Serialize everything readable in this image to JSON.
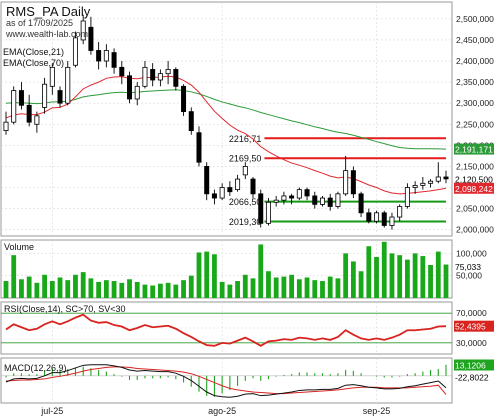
{
  "colors": {
    "up": "#ffffff",
    "down": "#000000",
    "ema21": "#e0282e",
    "ema70": "#2e9b3a",
    "volume": "#19a819",
    "rsi": "#d8231f",
    "macd": "#111111",
    "signal": "#d8231f",
    "hist": "#1ea41e",
    "level_red": "#e51b1b",
    "level_green": "#149a14"
  },
  "header": {
    "title": "RMS_PA Daily",
    "date_line": "as of 17/09/2025",
    "source": "www.wealth-lab.com",
    "ema21_label": "EMA(Close,21)",
    "ema70_label": "EMA(Close,70)"
  },
  "chart_data": [
    {
      "type": "candlestick",
      "panel": "price",
      "ylim": [
        1985000,
        2540000
      ],
      "y_ticks": [
        2000000,
        2050000,
        2100000,
        2150000,
        2200000,
        2250000,
        2300000,
        2350000,
        2400000,
        2450000,
        2500000
      ],
      "y_tick_labels": [
        "2,000,000",
        "2,050,000",
        "2,100,000",
        "2,150,000",
        "2,200,000",
        "2,250,000",
        "2,300,000",
        "2,350,000",
        "2,400,000",
        "2,450,000",
        "2,500,000"
      ],
      "x_labels": [
        "jul-25",
        "ago-25",
        "sep-25"
      ],
      "x_label_index": [
        6,
        28,
        48
      ],
      "ohlc": [
        [
          2235000,
          2280000,
          2225000,
          2255000
        ],
        [
          2255000,
          2340000,
          2250000,
          2330000
        ],
        [
          2330000,
          2350000,
          2285000,
          2295000
        ],
        [
          2295000,
          2320000,
          2245000,
          2255000
        ],
        [
          2250000,
          2280000,
          2230000,
          2270000
        ],
        [
          2290000,
          2360000,
          2275000,
          2345000
        ],
        [
          2340000,
          2395000,
          2320000,
          2385000
        ],
        [
          2330000,
          2340000,
          2290000,
          2300000
        ],
        [
          2300000,
          2400000,
          2295000,
          2385000
        ],
        [
          2390000,
          2470000,
          2385000,
          2455000
        ],
        [
          2450000,
          2510000,
          2440000,
          2495000
        ],
        [
          2480000,
          2505000,
          2415000,
          2425000
        ],
        [
          2425000,
          2445000,
          2380000,
          2400000
        ],
        [
          2400000,
          2440000,
          2385000,
          2425000
        ],
        [
          2420000,
          2430000,
          2370000,
          2385000
        ],
        [
          2385000,
          2400000,
          2345000,
          2365000
        ],
        [
          2365000,
          2375000,
          2300000,
          2310000
        ],
        [
          2310000,
          2350000,
          2295000,
          2340000
        ],
        [
          2340000,
          2400000,
          2335000,
          2385000
        ],
        [
          2380000,
          2395000,
          2340000,
          2355000
        ],
        [
          2355000,
          2380000,
          2340000,
          2370000
        ],
        [
          2370000,
          2400000,
          2345000,
          2380000
        ],
        [
          2380000,
          2385000,
          2330000,
          2340000
        ],
        [
          2340000,
          2345000,
          2270000,
          2280000
        ],
        [
          2280000,
          2290000,
          2225000,
          2235000
        ],
        [
          2230000,
          2245000,
          2150000,
          2160000
        ],
        [
          2150000,
          2160000,
          2070000,
          2085000
        ],
        [
          2085000,
          2095000,
          2060000,
          2075000
        ],
        [
          2075000,
          2110000,
          2070000,
          2100000
        ],
        [
          2100000,
          2115000,
          2080000,
          2090000
        ],
        [
          2095000,
          2130000,
          2090000,
          2120000
        ],
        [
          2130000,
          2160000,
          2120000,
          2150000
        ],
        [
          2120000,
          2125000,
          2075000,
          2085000
        ],
        [
          2085000,
          2095000,
          2005000,
          2015000
        ],
        [
          2015000,
          2075000,
          2010000,
          2065000
        ],
        [
          2065000,
          2080000,
          2055000,
          2070000
        ],
        [
          2070000,
          2090000,
          2060000,
          2080000
        ],
        [
          2080000,
          2085000,
          2060000,
          2075000
        ],
        [
          2075000,
          2100000,
          2070000,
          2095000
        ],
        [
          2095000,
          2100000,
          2070000,
          2080000
        ],
        [
          2080000,
          2090000,
          2050000,
          2060000
        ],
        [
          2060000,
          2080000,
          2055000,
          2075000
        ],
        [
          2075000,
          2085000,
          2045000,
          2055000
        ],
        [
          2055000,
          2090000,
          2050000,
          2085000
        ],
        [
          2085000,
          2175000,
          2080000,
          2140000
        ],
        [
          2140000,
          2150000,
          2075000,
          2085000
        ],
        [
          2085000,
          2090000,
          2030000,
          2040000
        ],
        [
          2040000,
          2050000,
          2015000,
          2020000
        ],
        [
          2020000,
          2045000,
          2015000,
          2040000
        ],
        [
          2040000,
          2045000,
          2005000,
          2010000
        ],
        [
          2010000,
          2040000,
          2000000,
          2030000
        ],
        [
          2030000,
          2060000,
          2020000,
          2055000
        ],
        [
          2055000,
          2110000,
          2050000,
          2100000
        ],
        [
          2100000,
          2115000,
          2085000,
          2105000
        ],
        [
          2105000,
          2125000,
          2095000,
          2110000
        ],
        [
          2110000,
          2120000,
          2100000,
          2115000
        ],
        [
          2115000,
          2160000,
          2110000,
          2125000
        ],
        [
          2125000,
          2140000,
          2110000,
          2120500
        ]
      ],
      "ema21": [
        2265000,
        2272000,
        2275000,
        2273000,
        2273000,
        2279000,
        2289000,
        2290000,
        2298000,
        2315000,
        2334000,
        2343000,
        2350000,
        2359000,
        2362000,
        2363000,
        2359000,
        2358000,
        2361000,
        2361000,
        2362000,
        2364000,
        2362000,
        2354000,
        2343000,
        2326000,
        2303000,
        2281000,
        2264000,
        2248000,
        2236000,
        2228000,
        2215000,
        2197000,
        2185000,
        2175000,
        2166000,
        2158000,
        2153000,
        2147000,
        2140000,
        2134000,
        2127000,
        2123000,
        2125000,
        2121000,
        2114000,
        2106000,
        2100000,
        2092000,
        2087000,
        2085000,
        2086000,
        2088000,
        2090000,
        2092000,
        2095000,
        2098242
      ],
      "ema70": [
        2300000,
        2301000,
        2301000,
        2300000,
        2299000,
        2300000,
        2303000,
        2303000,
        2305000,
        2309000,
        2315000,
        2318000,
        2320000,
        2323000,
        2325000,
        2326000,
        2325000,
        2326000,
        2328000,
        2329000,
        2330000,
        2331000,
        2332000,
        2330000,
        2327000,
        2322000,
        2316000,
        2309000,
        2303000,
        2298000,
        2293000,
        2289000,
        2284000,
        2278000,
        2273000,
        2268000,
        2263000,
        2258000,
        2254000,
        2249000,
        2244000,
        2240000,
        2235000,
        2231000,
        2228000,
        2224000,
        2219000,
        2214000,
        2209000,
        2204000,
        2199000,
        2195000,
        2193000,
        2192000,
        2191900,
        2191800,
        2191500,
        2191171
      ],
      "last_close_label": "2,120,500",
      "ema21_last_label": "2,098,242",
      "ema70_last_label": "2,191,171",
      "levels": [
        {
          "value": 2216710,
          "label": "2216,71",
          "color": "red",
          "from_index": 34
        },
        {
          "value": 2169500,
          "label": "2169,50",
          "color": "red",
          "from_index": 34
        },
        {
          "value": 2066500,
          "label": "2066,50",
          "color": "green",
          "from_index": 34
        },
        {
          "value": 2019300,
          "label": "2019,30",
          "color": "green",
          "from_index": 34
        }
      ]
    },
    {
      "type": "bar",
      "panel": "volume",
      "title": "Volume",
      "ylim": [
        0,
        130000
      ],
      "y_ticks": [
        50000,
        100000
      ],
      "y_tick_labels": [
        "50,000",
        "100,000"
      ],
      "last_label": "75,033",
      "values": [
        38000,
        96000,
        42000,
        48000,
        34000,
        52000,
        38000,
        46000,
        40000,
        52000,
        58000,
        44000,
        36000,
        40000,
        38000,
        34000,
        42000,
        36000,
        30000,
        28000,
        32000,
        34000,
        30000,
        40000,
        50000,
        102000,
        104000,
        98000,
        36000,
        30000,
        38000,
        52000,
        44000,
        120000,
        60000,
        46000,
        48000,
        52000,
        42000,
        46000,
        40000,
        38000,
        48000,
        44000,
        100000,
        82000,
        60000,
        116000,
        92000,
        126000,
        100000,
        96000,
        86000,
        100000,
        94000,
        74000,
        104000,
        75033
      ]
    },
    {
      "type": "line",
      "panel": "rsi",
      "title": "RSI(Close,14), SC>70, SV<30",
      "ylim": [
        15,
        85
      ],
      "y_ticks": [
        30,
        50,
        70
      ],
      "y_tick_labels": [
        "30,0000",
        "50,0000",
        "70,0000"
      ],
      "last_label": "52,4395",
      "values": [
        48,
        55,
        51,
        47,
        49,
        55,
        59,
        55,
        59,
        64,
        68,
        60,
        57,
        58,
        54,
        52,
        47,
        50,
        54,
        51,
        52,
        53,
        49,
        43,
        38,
        32,
        27,
        26,
        30,
        29,
        33,
        37,
        32,
        26,
        32,
        33,
        35,
        34,
        37,
        36,
        34,
        36,
        34,
        38,
        47,
        41,
        36,
        34,
        36,
        34,
        37,
        41,
        47,
        47,
        48,
        49,
        52,
        52.4395
      ]
    },
    {
      "type": "line",
      "panel": "macd",
      "title": "MACD(12,26,9)",
      "ylim": [
        -52000,
        34000
      ],
      "y_ticks": [
        0
      ],
      "y_tick_labels": [
        "0,000"
      ],
      "macd_last_label": "-22,8022",
      "hist_last_label": "13,1206",
      "macd": [
        -12000,
        -6000,
        -5000,
        -6000,
        -5000,
        0,
        6000,
        6000,
        10000,
        15000,
        20000,
        21000,
        21000,
        21000,
        19000,
        16000,
        11000,
        9000,
        10000,
        9000,
        8000,
        8000,
        5000,
        -1000,
        -9000,
        -20000,
        -31000,
        -38000,
        -40000,
        -41000,
        -39000,
        -35000,
        -34000,
        -38000,
        -37000,
        -35000,
        -33000,
        -31000,
        -28000,
        -27000,
        -27000,
        -26000,
        -26000,
        -24000,
        -18000,
        -17000,
        -19000,
        -22000,
        -23000,
        -25000,
        -25000,
        -24000,
        -21000,
        -19000,
        -16000,
        -13000,
        -10000,
        -22802
      ],
      "signal": [
        -10000,
        -9000,
        -8000,
        -8000,
        -7000,
        -6000,
        -3000,
        -1000,
        2000,
        5000,
        9000,
        12000,
        14000,
        16000,
        17000,
        17000,
        16000,
        14000,
        13000,
        12000,
        11000,
        10000,
        9000,
        7000,
        4000,
        -1000,
        -7000,
        -13000,
        -19000,
        -24000,
        -27000,
        -29000,
        -31000,
        -32000,
        -33000,
        -34000,
        -34000,
        -33000,
        -32000,
        -31000,
        -30000,
        -29000,
        -28000,
        -27000,
        -25000,
        -23000,
        -22000,
        -22000,
        -22000,
        -23000,
        -23000,
        -23000,
        -23000,
        -22000,
        -21000,
        -20000,
        -18000,
        -35900
      ]
    }
  ]
}
